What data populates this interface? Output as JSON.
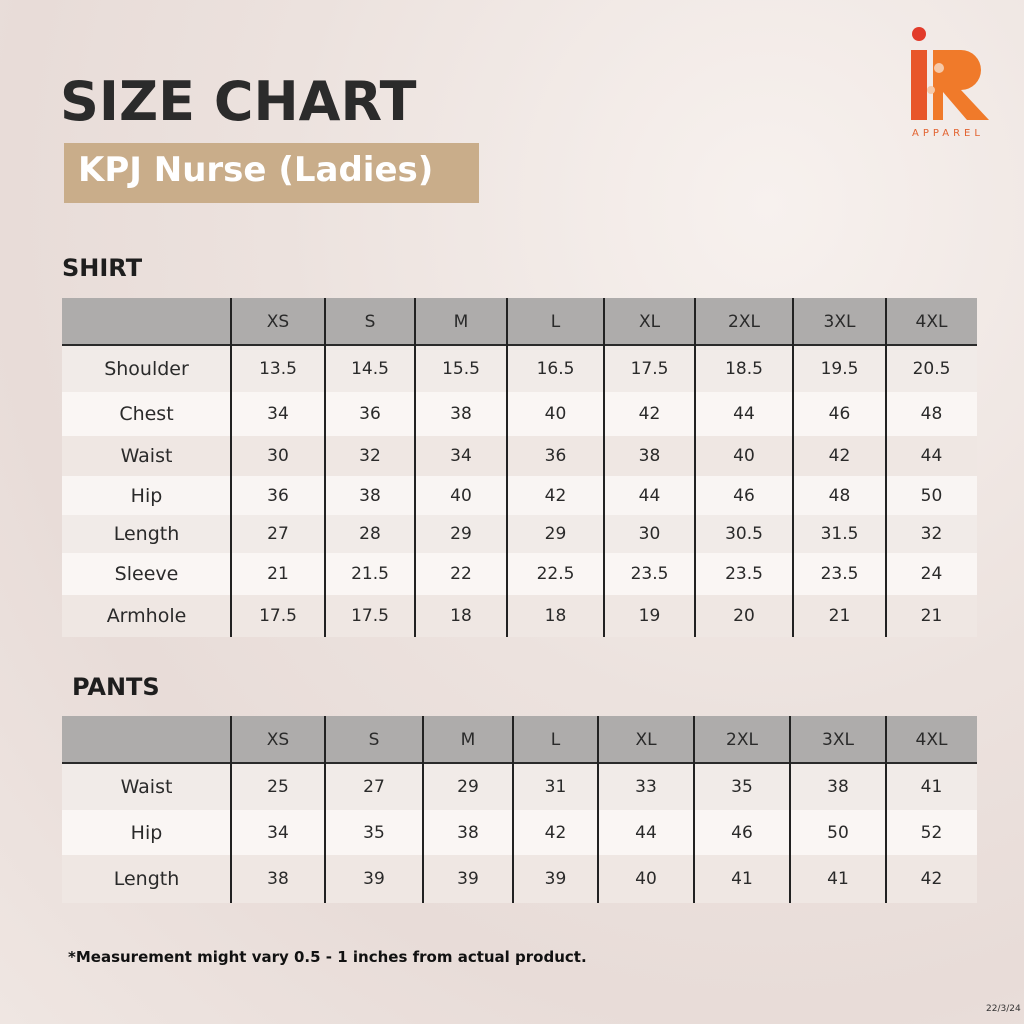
{
  "header": {
    "title": "SIZE CHART",
    "subtitle": "KPJ Nurse (Ladies)"
  },
  "logo": {
    "text": "APPAREL"
  },
  "shirt": {
    "title": "SHIRT",
    "columns": [
      "XS",
      "S",
      "M",
      "L",
      "XL",
      "2XL",
      "3XL",
      "4XL"
    ],
    "rows": [
      {
        "label": "Shoulder",
        "values": [
          13.5,
          14.5,
          15.5,
          16.5,
          17.5,
          18.5,
          19.5,
          20.5
        ]
      },
      {
        "label": "Chest",
        "values": [
          34,
          36,
          38,
          40,
          42,
          44,
          46,
          48
        ]
      },
      {
        "label": "Waist",
        "values": [
          30,
          32,
          34,
          36,
          38,
          40,
          42,
          44
        ]
      },
      {
        "label": "Hip",
        "values": [
          36,
          38,
          40,
          42,
          44,
          46,
          48,
          50
        ]
      },
      {
        "label": "Length",
        "values": [
          27,
          28,
          29,
          29,
          30,
          30.5,
          31.5,
          32
        ]
      },
      {
        "label": "Sleeve",
        "values": [
          21,
          21.5,
          22,
          22.5,
          23.5,
          23.5,
          23.5,
          24
        ]
      },
      {
        "label": "Armhole",
        "values": [
          17.5,
          17.5,
          18,
          18,
          19,
          20,
          21,
          21
        ]
      }
    ]
  },
  "pants": {
    "title": "PANTS",
    "columns": [
      "XS",
      "S",
      "M",
      "L",
      "XL",
      "2XL",
      "3XL",
      "4XL"
    ],
    "rows": [
      {
        "label": "Waist",
        "values": [
          25,
          27,
          29,
          31,
          33,
          35,
          38,
          41
        ]
      },
      {
        "label": "Hip",
        "values": [
          34,
          35,
          38,
          42,
          44,
          46,
          50,
          52
        ]
      },
      {
        "label": "Length",
        "values": [
          38,
          39,
          39,
          39,
          40,
          41,
          41,
          42
        ]
      }
    ]
  },
  "footer": {
    "note": "*Measurement might vary 0.5 - 1 inches from actual product.",
    "date": "22/3/24"
  }
}
